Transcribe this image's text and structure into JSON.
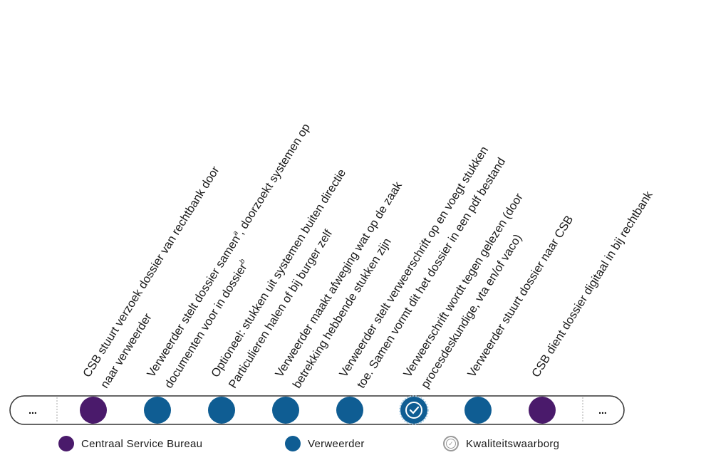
{
  "timeline": {
    "start_label": "...",
    "end_label": "...",
    "steps": [
      {
        "actor": "csb",
        "quality": false,
        "line1": "CSB stuurt verzoek dossier van rechtbank door",
        "line2": "naar verweerder"
      },
      {
        "actor": "verw",
        "quality": false,
        "line1": "Verweerder stelt dossier samen",
        "sup1": "a",
        "line1b": ", doorzoekt systemen op",
        "line2": "documenten voor in dossier",
        "sup2": "b"
      },
      {
        "actor": "verw",
        "quality": false,
        "line1": "Optioneel: stukken uit systemen buiten directie",
        "line2": "Particulieren halen of bij burger zelf"
      },
      {
        "actor": "verw",
        "quality": false,
        "line1": "Verweerder maakt afweging wat op de zaak",
        "line2": "betrekking hebbende stukken zijn"
      },
      {
        "actor": "verw",
        "quality": false,
        "line1": "Verweerder stelt verweerschrift op en voegt stukken",
        "line2": "toe. Samen vormt dit het dossier in een pdf bestand"
      },
      {
        "actor": "verw",
        "quality": true,
        "line1": "Verweerschrift wordt tegen gelezen (door",
        "line2": "procesdeskundige, vta en/of vaco)"
      },
      {
        "actor": "verw",
        "quality": false,
        "line1": "Verweerder stuurt dossier naar CSB",
        "line2": ""
      },
      {
        "actor": "csb",
        "quality": false,
        "line1": "CSB dient dossier digitaal in bij rechtbank",
        "line2": ""
      }
    ]
  },
  "legend": {
    "csb": "Centraal Service Bureau",
    "verweerder": "Verweerder",
    "quality": "Kwaliteitswaarborg"
  },
  "colors": {
    "csb": "#4a1a6b",
    "verweerder": "#0f5d93",
    "quality_ring": "#ffffff",
    "timeline_border": "#333333"
  }
}
